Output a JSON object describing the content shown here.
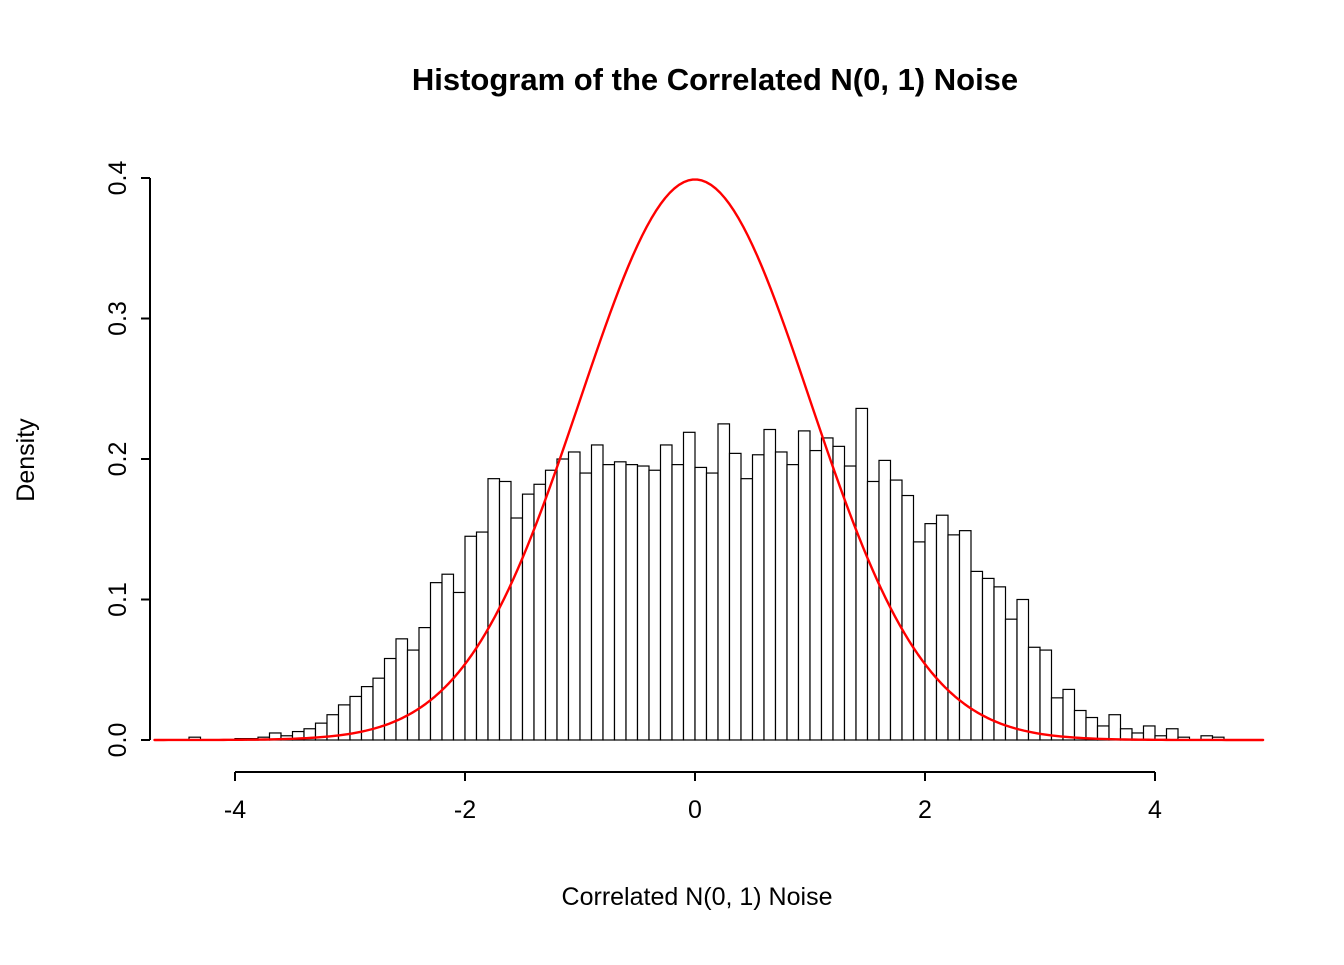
{
  "chart_data": {
    "type": "bar",
    "subtype": "histogram-with-density-curve",
    "title": "Histogram of the Correlated N(0, 1) Noise",
    "xlabel": "Correlated N(0, 1) Noise",
    "ylabel": "Density",
    "bin_start": -4.4,
    "bin_width": 0.1,
    "densities": [
      0.002,
      0,
      0,
      0,
      0.001,
      0.001,
      0.002,
      0.005,
      0.003,
      0.006,
      0.008,
      0.012,
      0.018,
      0.025,
      0.031,
      0.038,
      0.044,
      0.058,
      0.072,
      0.064,
      0.08,
      0.112,
      0.118,
      0.105,
      0.145,
      0.148,
      0.186,
      0.184,
      0.158,
      0.175,
      0.182,
      0.192,
      0.2,
      0.205,
      0.19,
      0.21,
      0.196,
      0.198,
      0.196,
      0.195,
      0.192,
      0.21,
      0.196,
      0.219,
      0.194,
      0.19,
      0.225,
      0.204,
      0.186,
      0.203,
      0.221,
      0.205,
      0.196,
      0.22,
      0.206,
      0.215,
      0.209,
      0.195,
      0.236,
      0.184,
      0.199,
      0.185,
      0.174,
      0.141,
      0.154,
      0.16,
      0.146,
      0.149,
      0.12,
      0.115,
      0.109,
      0.086,
      0.1,
      0.066,
      0.064,
      0.03,
      0.036,
      0.021,
      0.016,
      0.01,
      0.018,
      0.008,
      0.005,
      0.01,
      0.003,
      0.008,
      0.002,
      0.0,
      0.003,
      0.002
    ],
    "x_ticks": [
      -4,
      -2,
      0,
      2,
      4
    ],
    "y_ticks": [
      0.0,
      0.1,
      0.2,
      0.3,
      0.4
    ],
    "xlim": [
      -4.87,
      5.0
    ],
    "ylim": [
      0,
      0.4
    ],
    "grid": false,
    "legend": "none",
    "bar_fill": "#FFFFFF",
    "bar_stroke": "#000000",
    "axis_color": "#000000",
    "overlay_curve": {
      "type": "normal-density",
      "mean": 0,
      "sd": 1,
      "color": "#FF0000",
      "x_range": [
        -4.7,
        4.95
      ]
    }
  }
}
